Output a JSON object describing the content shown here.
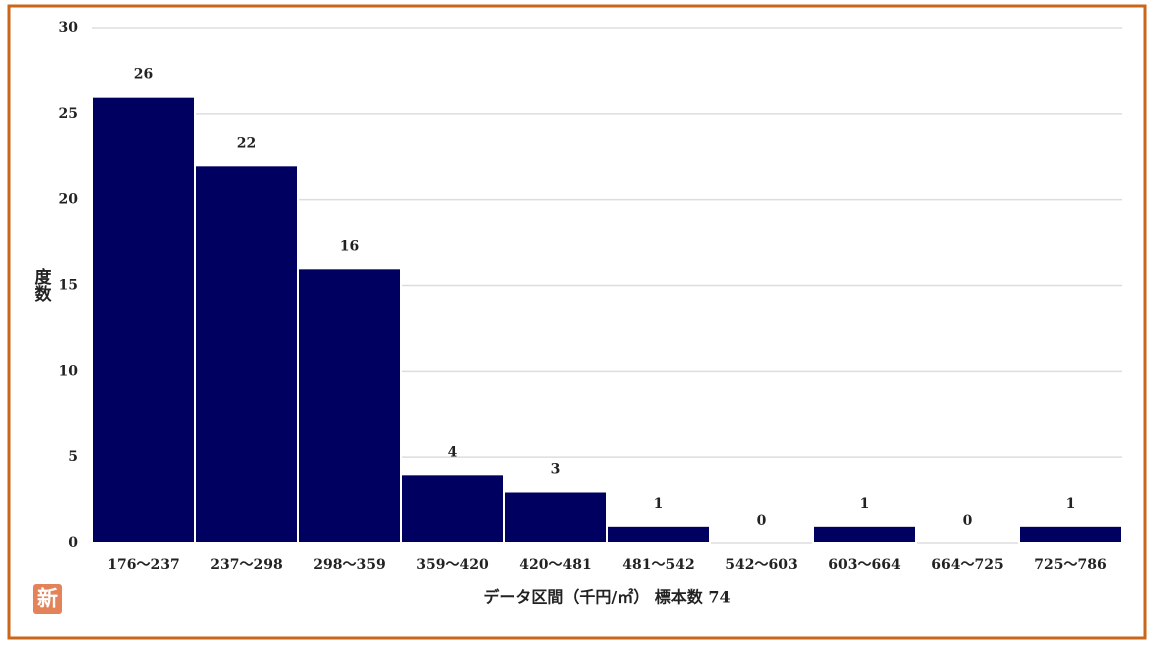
{
  "chart_data": {
    "type": "bar",
    "x_label": "データ区間（千円/㎡） 標本数 74",
    "y_label": "度数",
    "badge": "新",
    "categories": [
      "176～237",
      "237～298",
      "298～359",
      "359～420",
      "420～481",
      "481～542",
      "542～603",
      "603～664",
      "664～725",
      "725～786"
    ],
    "values": [
      26,
      22,
      16,
      4,
      3,
      1,
      0,
      1,
      0,
      1
    ],
    "color": "#000060",
    "ylim": [
      0,
      30
    ],
    "yticks": [
      0,
      5,
      10,
      15,
      20,
      25,
      30
    ],
    "grid": true
  }
}
